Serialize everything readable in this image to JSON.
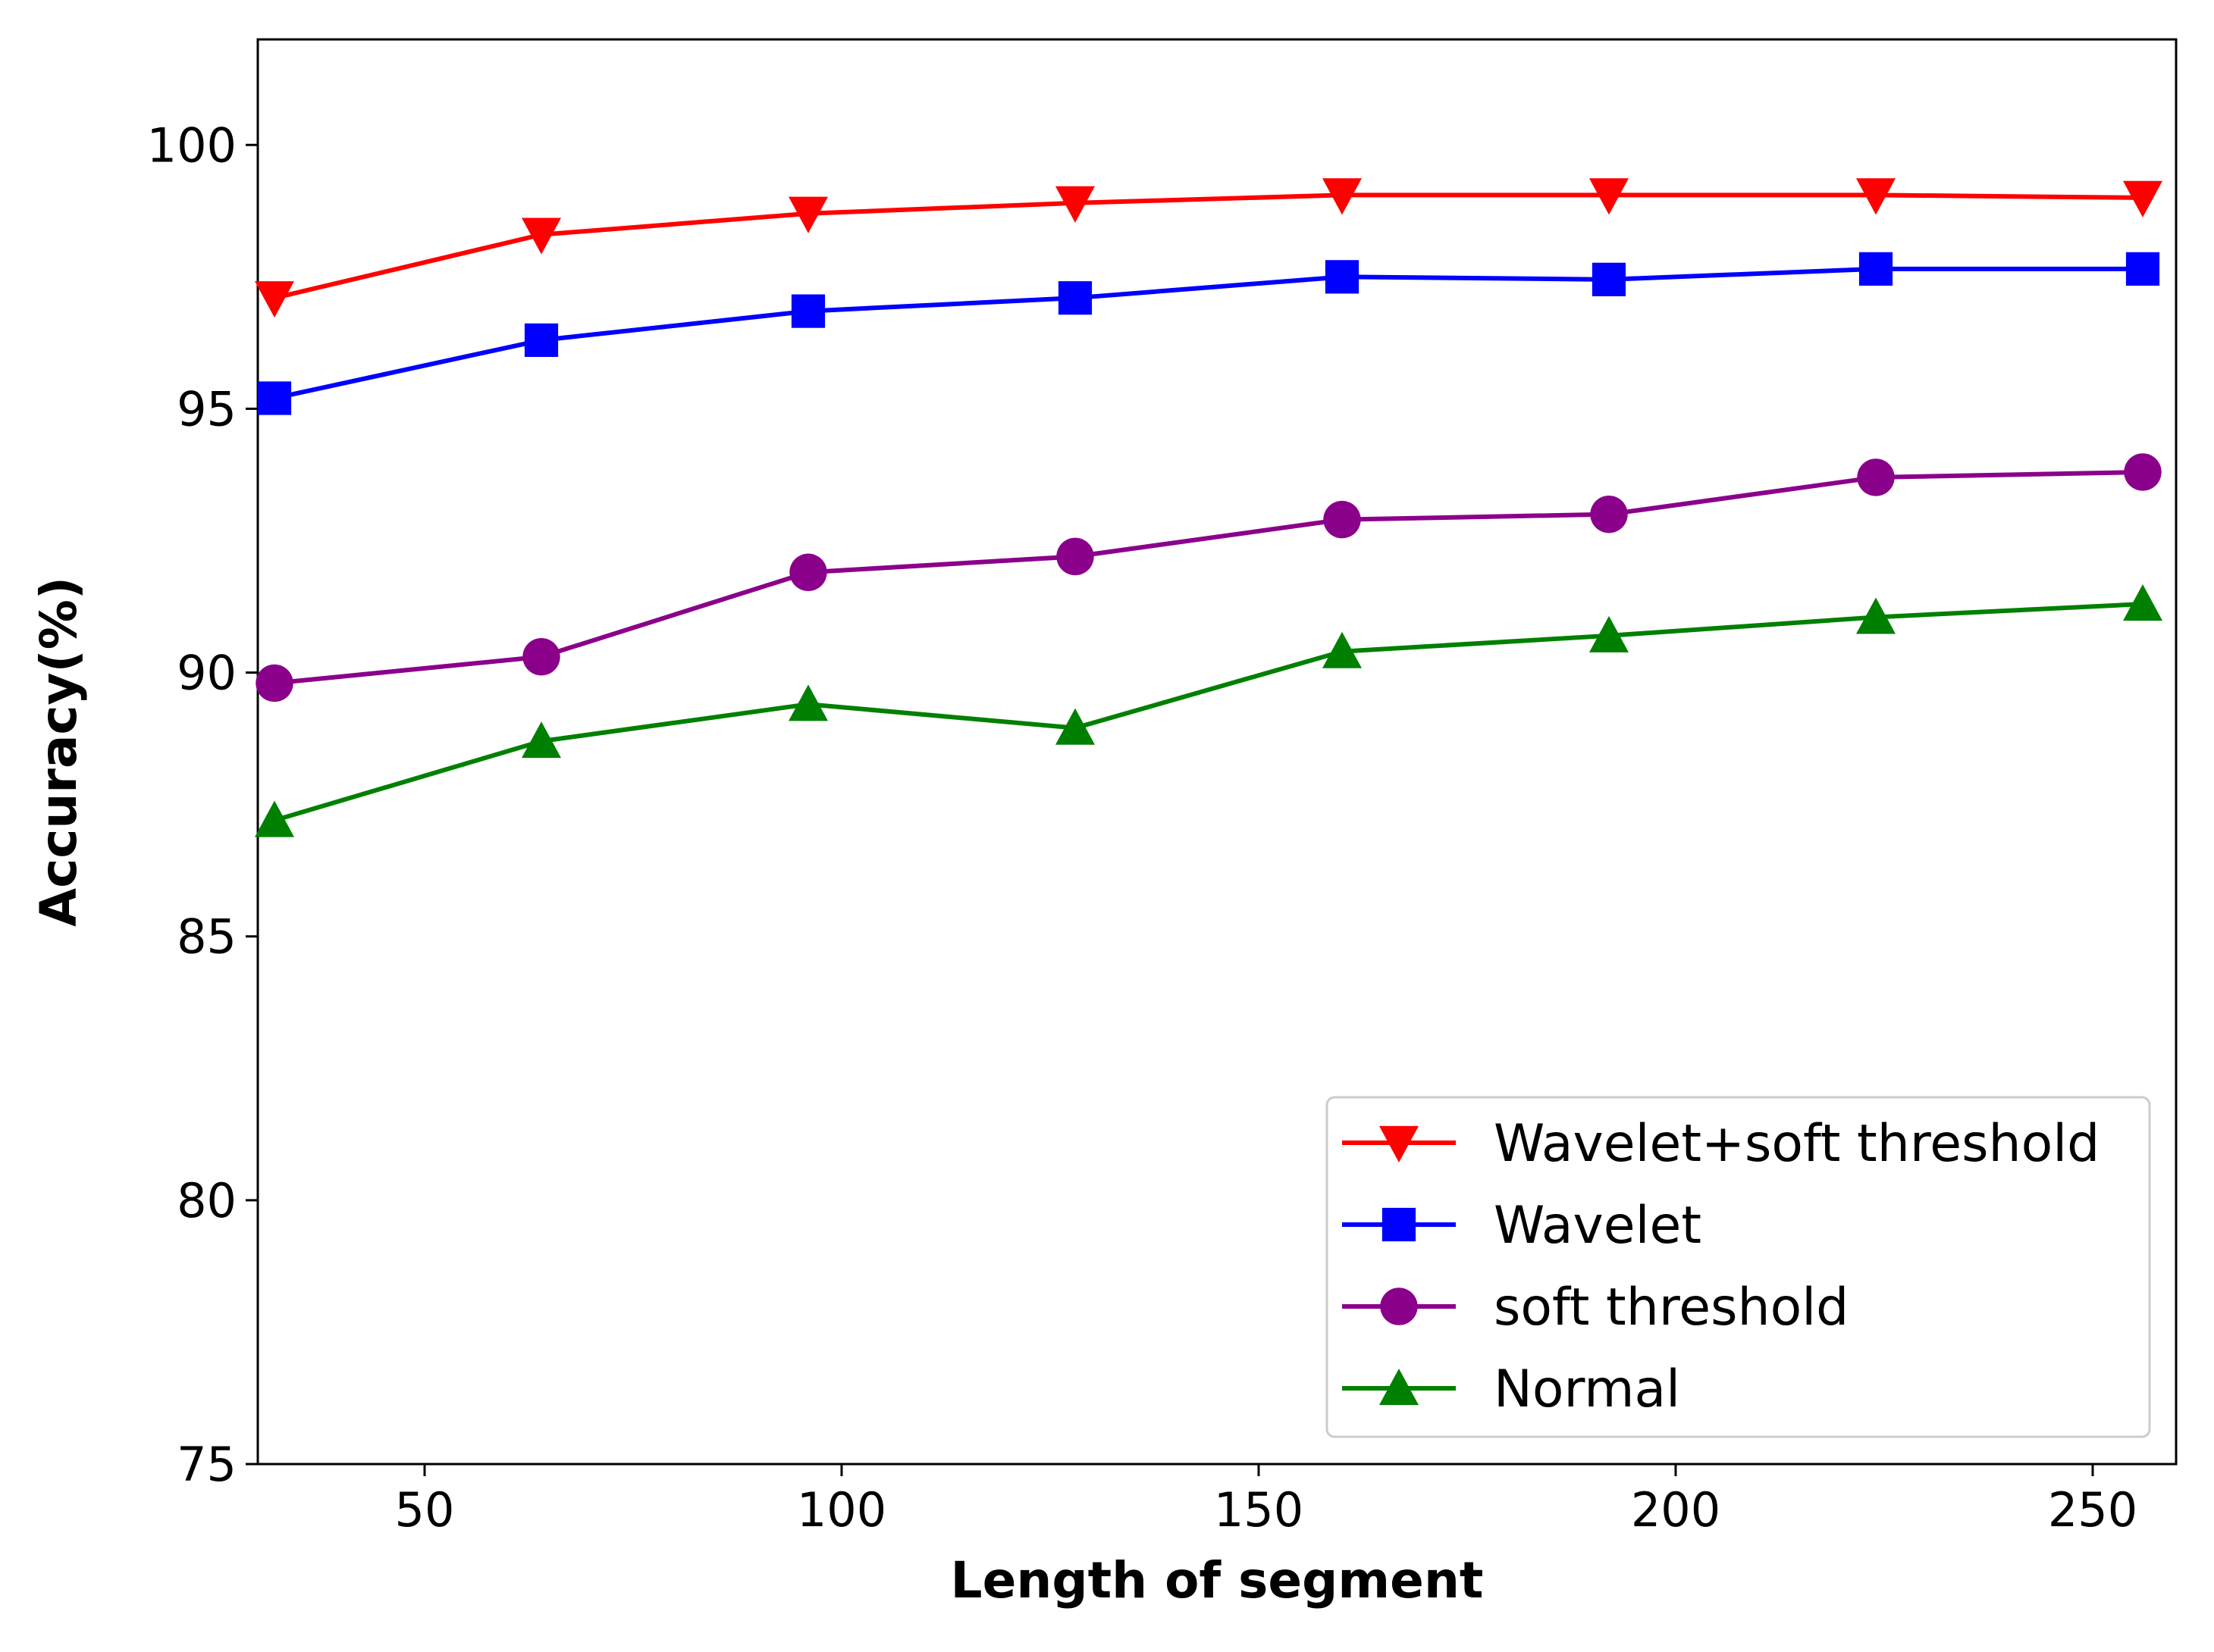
{
  "chart_data": {
    "type": "line",
    "title": "",
    "xlabel": "Length of segment",
    "ylabel": "Accuracy(%)",
    "xlim": [
      30,
      260
    ],
    "ylim": [
      75,
      102
    ],
    "xticks": [
      50,
      100,
      150,
      200,
      250
    ],
    "yticks": [
      75,
      80,
      85,
      90,
      95,
      100
    ],
    "grid": false,
    "legend_position": "lower-right",
    "x": [
      32,
      64,
      96,
      128,
      160,
      192,
      224,
      256
    ],
    "series": [
      {
        "name": "Wavelet+soft threshold",
        "color": "#ff0000",
        "marker": "triangle-down",
        "values": [
          97.1,
          98.3,
          98.7,
          98.9,
          99.05,
          99.05,
          99.05,
          99.0
        ]
      },
      {
        "name": "Wavelet",
        "color": "#0000ff",
        "marker": "square",
        "values": [
          95.2,
          96.3,
          96.85,
          97.1,
          97.5,
          97.45,
          97.65,
          97.65
        ]
      },
      {
        "name": "soft threshold",
        "color": "#8b008b",
        "marker": "circle",
        "values": [
          89.8,
          90.3,
          91.9,
          92.2,
          92.9,
          93.0,
          93.7,
          93.8
        ]
      },
      {
        "name": "Normal",
        "color": "#008000",
        "marker": "triangle-up",
        "values": [
          87.2,
          88.7,
          89.4,
          88.95,
          90.4,
          90.7,
          91.05,
          91.3
        ]
      }
    ]
  }
}
